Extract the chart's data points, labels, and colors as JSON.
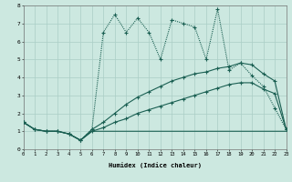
{
  "xlabel": "Humidex (Indice chaleur)",
  "bg_color": "#cce8e0",
  "grid_color": "#aacec6",
  "line_color": "#1a5f52",
  "xlim": [
    0,
    23
  ],
  "ylim": [
    0,
    8
  ],
  "xticks": [
    0,
    1,
    2,
    3,
    4,
    5,
    6,
    7,
    8,
    9,
    10,
    11,
    12,
    13,
    14,
    15,
    16,
    17,
    18,
    19,
    20,
    21,
    22,
    23
  ],
  "yticks": [
    0,
    1,
    2,
    3,
    4,
    5,
    6,
    7,
    8
  ],
  "s1_x": [
    0,
    1,
    2,
    3,
    4,
    5,
    6,
    7,
    8,
    9,
    10,
    11,
    12,
    13,
    14,
    15,
    16,
    17,
    18,
    19,
    20,
    21,
    22,
    23
  ],
  "s1_y": [
    1.5,
    1.1,
    1.0,
    1.0,
    0.85,
    0.5,
    1.0,
    1.0,
    1.0,
    1.0,
    1.0,
    1.0,
    1.0,
    1.0,
    1.0,
    1.0,
    1.0,
    1.0,
    1.0,
    1.0,
    1.0,
    1.0,
    1.0,
    1.0
  ],
  "s2_x": [
    0,
    1,
    2,
    3,
    4,
    5,
    6,
    7,
    8,
    9,
    10,
    11,
    12,
    13,
    14,
    15,
    16,
    17,
    18,
    19,
    20,
    21,
    22,
    23
  ],
  "s2_y": [
    1.5,
    1.1,
    1.0,
    1.0,
    0.85,
    0.5,
    1.0,
    1.2,
    1.5,
    1.7,
    2.0,
    2.2,
    2.4,
    2.6,
    2.8,
    3.0,
    3.2,
    3.4,
    3.6,
    3.7,
    3.7,
    3.35,
    3.1,
    1.1
  ],
  "s3_x": [
    0,
    1,
    2,
    3,
    4,
    5,
    6,
    7,
    8,
    9,
    10,
    11,
    12,
    13,
    14,
    15,
    16,
    17,
    18,
    19,
    20,
    21,
    22,
    23
  ],
  "s3_y": [
    1.5,
    1.1,
    1.0,
    1.0,
    0.85,
    0.5,
    1.1,
    1.5,
    2.0,
    2.5,
    2.9,
    3.2,
    3.5,
    3.8,
    4.0,
    4.2,
    4.3,
    4.5,
    4.6,
    4.8,
    4.7,
    4.2,
    3.8,
    1.1
  ],
  "s4_x": [
    0,
    1,
    2,
    3,
    4,
    5,
    6,
    7,
    8,
    9,
    10,
    11,
    12,
    13,
    14,
    15,
    16,
    17,
    18,
    19,
    20,
    21,
    22,
    23
  ],
  "s4_y": [
    1.5,
    1.1,
    1.0,
    1.0,
    0.85,
    0.5,
    1.1,
    6.5,
    7.5,
    6.5,
    7.3,
    6.5,
    5.0,
    7.2,
    7.0,
    6.8,
    5.0,
    7.8,
    4.4,
    4.8,
    4.1,
    3.5,
    2.3,
    1.1
  ]
}
